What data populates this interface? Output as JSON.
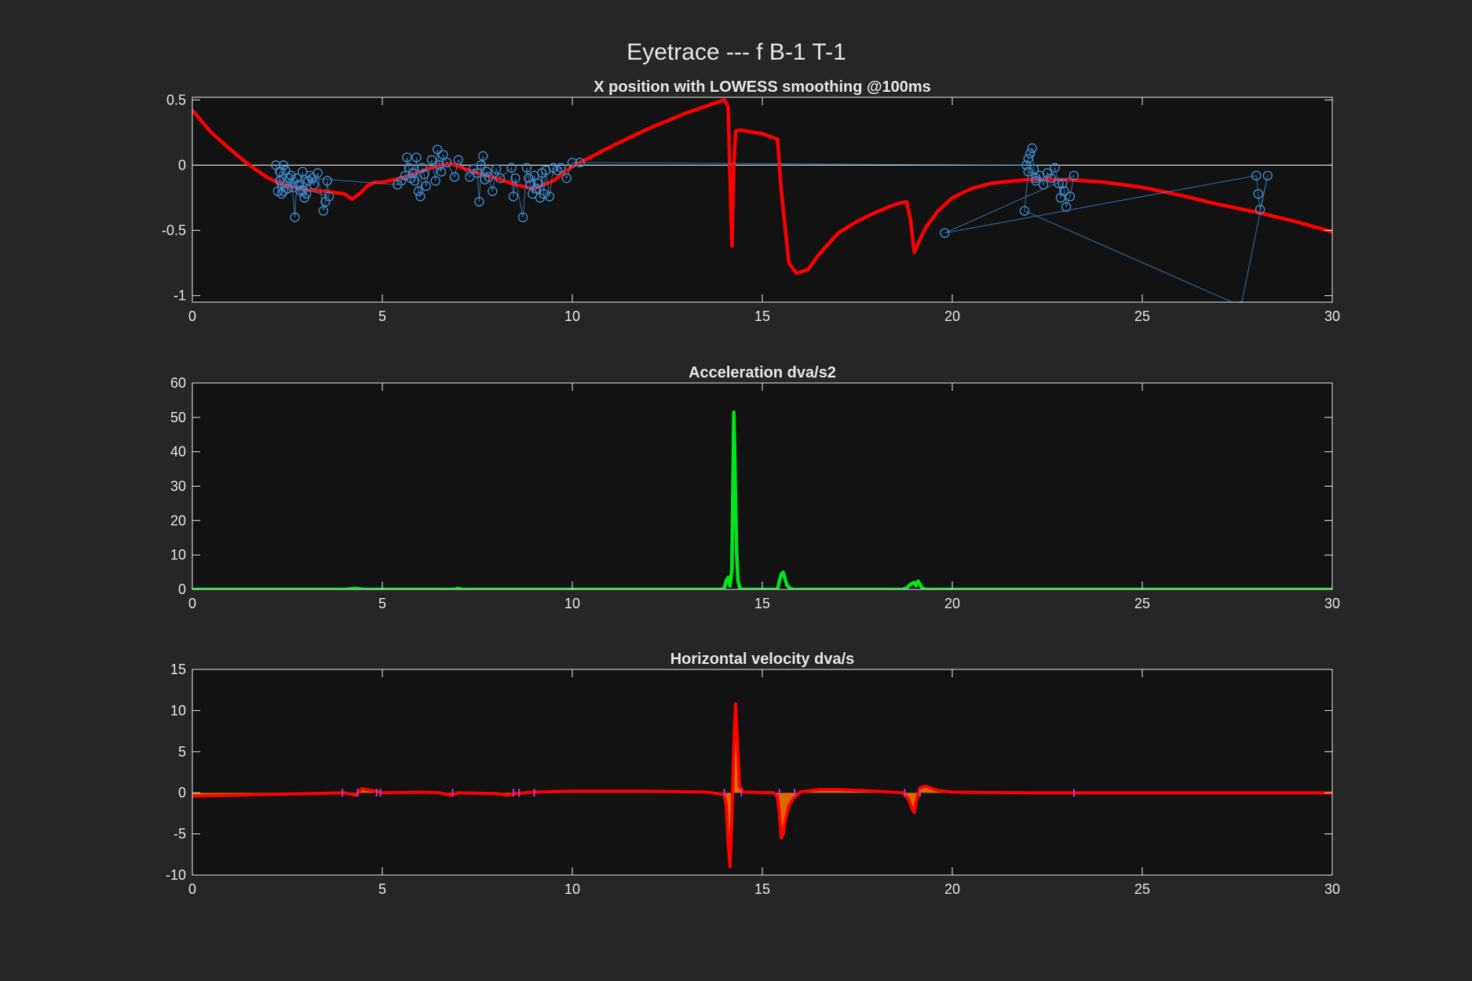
{
  "figure": {
    "title": "Eyetrace --- f B-1 T-1"
  },
  "colors": {
    "background": "#262626",
    "axes_bg": "#121212",
    "axes_line": "#e6e6e6",
    "smooth_line": "#ff0000",
    "raw_markers": "#3f8fd6",
    "acceleration": "#00e61a",
    "velocity": "#ff0000",
    "velocity_fill": "#ff7a00",
    "tick_marks": "#cc33cc"
  },
  "chart_data": [
    {
      "type": "line",
      "title": "X position with LOWESS smoothing @100ms",
      "xlabel": "",
      "ylabel": "",
      "xlim": [
        0,
        30
      ],
      "ylim": [
        -1.05,
        0.52
      ],
      "xticks": [
        0,
        5,
        10,
        15,
        20,
        25,
        30
      ],
      "yticks": [
        -1,
        -0.5,
        0,
        0.5
      ],
      "ytick_labels": [
        "-1",
        "-0.5",
        "0",
        "0.5"
      ],
      "zero_line": true,
      "series": [
        {
          "kind": "smoothed-line",
          "x": [
            0,
            0.5,
            1,
            1.5,
            2,
            2.5,
            3,
            3.5,
            4,
            4.2,
            4.4,
            4.6,
            4.8,
            5,
            5.5,
            6,
            6.5,
            6.8,
            7,
            7.5,
            8,
            8.5,
            9,
            9.5,
            10,
            11,
            12,
            13,
            13.5,
            14,
            14.1,
            14.2,
            14.25,
            14.3,
            14.4,
            15,
            15.4,
            15.5,
            15.7,
            15.9,
            16.2,
            16.5,
            17,
            17.5,
            18,
            18.5,
            18.8,
            18.9,
            19,
            19.1,
            19.3,
            19.6,
            20,
            20.5,
            21,
            22,
            23,
            24,
            25,
            26,
            27,
            28,
            29,
            30
          ],
          "y": [
            0.42,
            0.25,
            0.12,
            0.0,
            -0.1,
            -0.16,
            -0.19,
            -0.2,
            -0.22,
            -0.26,
            -0.22,
            -0.16,
            -0.13,
            -0.13,
            -0.1,
            -0.05,
            0.0,
            0.01,
            -0.01,
            -0.06,
            -0.1,
            -0.15,
            -0.18,
            -0.12,
            -0.01,
            0.14,
            0.28,
            0.4,
            0.45,
            0.5,
            0.45,
            -0.62,
            0.0,
            0.26,
            0.27,
            0.24,
            0.2,
            -0.2,
            -0.75,
            -0.83,
            -0.8,
            -0.68,
            -0.52,
            -0.43,
            -0.36,
            -0.3,
            -0.28,
            -0.42,
            -0.67,
            -0.6,
            -0.48,
            -0.36,
            -0.25,
            -0.18,
            -0.14,
            -0.11,
            -0.11,
            -0.13,
            -0.17,
            -0.23,
            -0.3,
            -0.36,
            -0.43,
            -0.51
          ]
        },
        {
          "kind": "raw-markers",
          "x": [
            2.2,
            2.25,
            2.3,
            2.35,
            2.4,
            2.45,
            2.5,
            2.6,
            2.7,
            2.75,
            2.8,
            2.85,
            2.9,
            2.95,
            3.0,
            3.05,
            3.1,
            3.2,
            3.3,
            3.45,
            3.5,
            3.55,
            3.6,
            2.3,
            2.4,
            2.55,
            2.65,
            2.9,
            3.15,
            5.4,
            5.5,
            5.6,
            5.65,
            5.7,
            5.75,
            5.8,
            5.85,
            5.9,
            5.95,
            6.0,
            6.05,
            6.1,
            6.15,
            6.3,
            6.4,
            6.45,
            6.5,
            6.55,
            6.6,
            6.7,
            6.9,
            7.0,
            7.3,
            7.4,
            7.5,
            7.55,
            7.6,
            7.65,
            7.7,
            7.75,
            7.8,
            7.9,
            8.0,
            8.1,
            8.4,
            8.45,
            8.5,
            8.7,
            8.8,
            8.85,
            8.9,
            8.95,
            9.0,
            9.05,
            9.1,
            9.15,
            9.2,
            9.25,
            9.3,
            9.4,
            9.5,
            9.6,
            9.7,
            9.85,
            10.0,
            10.2,
            21.95,
            22.0,
            22.05,
            22.1,
            22.15,
            22.2,
            22.3,
            22.4,
            22.5,
            22.6,
            22.7,
            22.8,
            22.85,
            22.9,
            22.95,
            23.0,
            23.1,
            23.2,
            19.8,
            28.0,
            28.05,
            28.1,
            28.3,
            27.6,
            21.9,
            22.0,
            22.2
          ],
          "y": [
            0.0,
            -0.2,
            -0.05,
            -0.22,
            0.0,
            -0.04,
            -0.18,
            -0.08,
            -0.4,
            -0.1,
            -0.15,
            -0.2,
            -0.05,
            -0.25,
            -0.22,
            -0.12,
            -0.08,
            -0.15,
            -0.06,
            -0.35,
            -0.28,
            -0.12,
            -0.24,
            -0.12,
            -0.2,
            -0.1,
            -0.17,
            -0.19,
            -0.1,
            -0.15,
            -0.12,
            -0.08,
            0.06,
            -0.02,
            -0.1,
            -0.06,
            -0.12,
            0.06,
            -0.2,
            -0.24,
            -0.02,
            -0.07,
            -0.16,
            0.04,
            -0.12,
            0.12,
            0.0,
            -0.05,
            0.08,
            0.02,
            -0.09,
            0.04,
            -0.09,
            -0.03,
            -0.06,
            -0.28,
            0.0,
            0.07,
            -0.11,
            -0.05,
            -0.09,
            -0.2,
            -0.03,
            -0.1,
            -0.02,
            -0.24,
            -0.1,
            -0.4,
            -0.02,
            -0.1,
            -0.15,
            -0.22,
            -0.08,
            -0.18,
            -0.14,
            -0.25,
            -0.06,
            -0.22,
            -0.04,
            -0.24,
            -0.02,
            -0.04,
            -0.02,
            -0.1,
            0.02,
            0.02,
            0.0,
            0.05,
            0.09,
            0.13,
            -0.03,
            -0.1,
            -0.08,
            -0.15,
            -0.06,
            -0.1,
            -0.02,
            -0.14,
            -0.25,
            -0.14,
            -0.2,
            -0.32,
            -0.24,
            -0.08,
            -0.52,
            -0.08,
            -0.22,
            -0.34,
            -0.08,
            -1.08,
            -0.35,
            -0.05,
            -0.12
          ]
        }
      ]
    },
    {
      "type": "line",
      "title": "Acceleration dva/s2",
      "xlabel": "",
      "ylabel": "",
      "xlim": [
        0,
        30
      ],
      "ylim": [
        0,
        60
      ],
      "xticks": [
        0,
        5,
        10,
        15,
        20,
        25,
        30
      ],
      "yticks": [
        0,
        10,
        20,
        30,
        40,
        50,
        60
      ],
      "ytick_labels": [
        "0",
        "10",
        "20",
        "30",
        "40",
        "50",
        "60"
      ],
      "series": [
        {
          "x": [
            0,
            4.0,
            4.3,
            4.5,
            6.9,
            7.0,
            7.1,
            13.9,
            14.0,
            14.05,
            14.1,
            14.15,
            14.2,
            14.25,
            14.28,
            14.32,
            14.36,
            14.42,
            15.4,
            15.45,
            15.5,
            15.55,
            15.6,
            15.65,
            15.72,
            15.8,
            18.7,
            18.8,
            18.9,
            19.0,
            19.05,
            19.1,
            19.15,
            19.2,
            19.3,
            30
          ],
          "y": [
            0,
            0,
            0.3,
            0,
            0,
            0.3,
            0,
            0,
            0.3,
            2.5,
            3.5,
            1.0,
            6.0,
            51.5,
            35.0,
            12.0,
            2.5,
            0,
            0,
            2.5,
            4.5,
            5.0,
            3.0,
            1.2,
            0.4,
            0,
            0,
            0.4,
            1.5,
            2.0,
            1.0,
            2.4,
            1.5,
            0.4,
            0,
            0
          ]
        }
      ]
    },
    {
      "type": "area",
      "title": "Horizontal velocity dva/s",
      "xlabel": "",
      "ylabel": "",
      "xlim": [
        0,
        30
      ],
      "ylim": [
        -10,
        15
      ],
      "xticks": [
        0,
        5,
        10,
        15,
        20,
        25,
        30
      ],
      "yticks": [
        -10,
        -5,
        0,
        5,
        10,
        15
      ],
      "ytick_labels": [
        "-10",
        "-5",
        "0",
        "5",
        "10",
        "15"
      ],
      "marker_x": [
        3.95,
        4.35,
        4.85,
        4.95,
        6.85,
        8.45,
        8.6,
        9.0,
        14.0,
        14.45,
        15.45,
        15.85,
        18.75,
        19.15,
        23.2
      ],
      "series": [
        {
          "x": [
            0,
            2,
            4,
            4.3,
            4.45,
            4.7,
            5,
            6,
            6.5,
            6.8,
            7.0,
            8,
            8.3,
            8.5,
            9,
            10,
            12,
            13.5,
            14.0,
            14.05,
            14.1,
            14.15,
            14.2,
            14.25,
            14.3,
            14.35,
            14.4,
            14.5,
            15.3,
            15.4,
            15.45,
            15.5,
            15.55,
            15.6,
            15.7,
            15.85,
            16.0,
            16.5,
            17,
            18,
            18.7,
            18.85,
            18.95,
            19.0,
            19.05,
            19.15,
            19.3,
            19.6,
            20,
            22,
            24,
            26,
            28,
            30
          ],
          "y": [
            -0.4,
            -0.2,
            0.0,
            -0.3,
            0.5,
            0.3,
            0.0,
            0.1,
            0.0,
            -0.3,
            0.0,
            -0.1,
            -0.3,
            -0.1,
            0.1,
            0.2,
            0.2,
            0.1,
            -0.2,
            -1.5,
            -6.0,
            -9.0,
            -3.0,
            6.0,
            10.8,
            6.0,
            0.8,
            0.1,
            0.0,
            -0.5,
            -2.5,
            -5.5,
            -5.0,
            -3.5,
            -1.5,
            -0.5,
            0.1,
            0.4,
            0.4,
            0.2,
            0.0,
            -0.8,
            -2.0,
            -2.4,
            -1.0,
            0.6,
            0.8,
            0.3,
            0.1,
            0.0,
            0.0,
            0.0,
            0.0,
            0.0
          ]
        }
      ]
    }
  ]
}
